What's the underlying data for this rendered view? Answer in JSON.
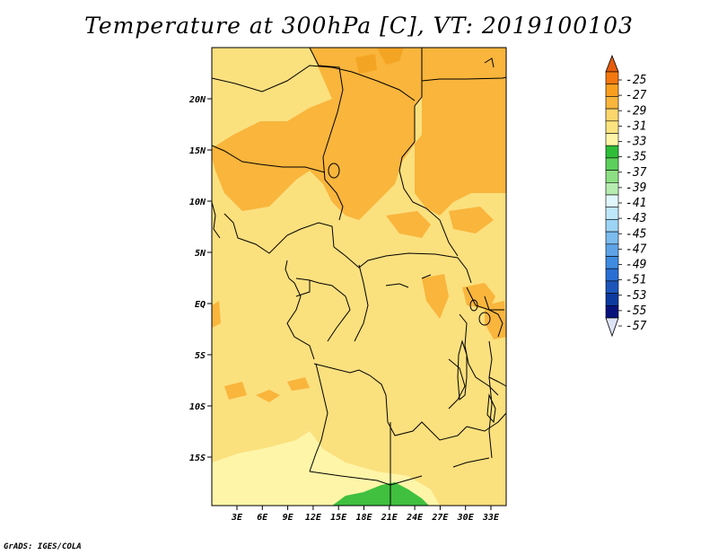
{
  "title": "Temperature at 300hPa [C], VT: 2019100103",
  "footer": "GrADS: IGES/COLA",
  "lat_ticks": [
    "20N",
    "15N",
    "10N",
    "5N",
    "EQ",
    "5S",
    "10S",
    "15S"
  ],
  "lon_ticks": [
    "3E",
    "6E",
    "9E",
    "12E",
    "15E",
    "18E",
    "21E",
    "24E",
    "27E",
    "30E",
    "33E"
  ],
  "colorbar": {
    "labels": [
      "-25",
      "-27",
      "-29",
      "-31",
      "-33",
      "-35",
      "-37",
      "-39",
      "-41",
      "-43",
      "-45",
      "-47",
      "-49",
      "-51",
      "-53",
      "-55",
      "-57"
    ],
    "colors": [
      "#e65b0a",
      "#f4780f",
      "#f99e1f",
      "#f9b53c",
      "#fbd66c",
      "#fbe47f",
      "#fef5a8",
      "#2fbd38",
      "#5cd05a",
      "#8ddf83",
      "#b7ecb1",
      "#e0f8fc",
      "#bfe7fb",
      "#9dd4f5",
      "#7cbcee",
      "#5ea3e6",
      "#3f8be0",
      "#2a6fd3",
      "#1d55bb",
      "#0d3a9f",
      "#07137c",
      "#dfe3f7"
    ]
  },
  "colors": {
    "field_base": "#fbe07e",
    "field_warm": "#f9b53c",
    "field_cool": "#fef5a8",
    "field_cold": "#40c03e",
    "boundary": "#000000"
  }
}
